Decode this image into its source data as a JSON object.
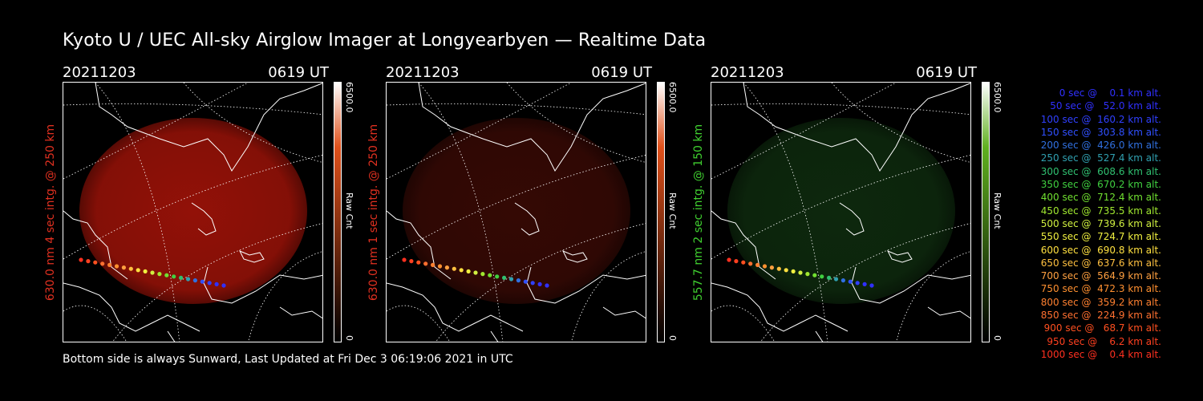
{
  "title": "Kyoto U / UEC All-sky Airglow Imager at Longyearbyen — Realtime Data",
  "panels": [
    {
      "date": "20211203",
      "time": "0619 UT",
      "side_label": "630.0 nm 4 sec intg. @ 250 km",
      "side_color": "#e03020",
      "cbar_max": "6500.0",
      "cbar_min": "0",
      "cbar_unit": "Raw Cnt",
      "glow_color": "#9a1208",
      "glow_opacity": 0.95,
      "cbar_top": "#ffffff",
      "cbar_mid": "#e0501a",
      "cbar_bottom": "#000000"
    },
    {
      "date": "20211203",
      "time": "0619 UT",
      "side_label": "630.0 nm 1 sec intg. @ 250 km",
      "side_color": "#e03020",
      "cbar_max": "6500.0",
      "cbar_min": "0",
      "cbar_unit": "Raw Cnt",
      "glow_color": "#3a0a05",
      "glow_opacity": 0.9,
      "cbar_top": "#ffffff",
      "cbar_mid": "#e0501a",
      "cbar_bottom": "#000000"
    },
    {
      "date": "20211203",
      "time": "0619 UT",
      "side_label": "557.7 nm 2 sec intg. @ 150 km",
      "side_color": "#40d030",
      "cbar_max": "6500.0",
      "cbar_min": "0",
      "cbar_unit": "Raw Cnt",
      "glow_color": "#0e2a0e",
      "glow_opacity": 0.95,
      "cbar_top": "#ffffff",
      "cbar_mid": "#60b020",
      "cbar_bottom": "#000000"
    }
  ],
  "footer": "Bottom side is always Sunward, Last Updated at Fri Dec  3 06:19:06 2021 in UTC",
  "legend": [
    {
      "text": "0 sec @    0.1 km alt.",
      "color": "#3030ff"
    },
    {
      "text": "50 sec @   52.0 km alt.",
      "color": "#3030ff"
    },
    {
      "text": "100 sec @  160.2 km alt.",
      "color": "#3040ff"
    },
    {
      "text": "150 sec @  303.8 km alt.",
      "color": "#3050ff"
    },
    {
      "text": "200 sec @  426.0 km alt.",
      "color": "#3070e0"
    },
    {
      "text": "250 sec @  527.4 km alt.",
      "color": "#30a0b0"
    },
    {
      "text": "300 sec @  608.6 km alt.",
      "color": "#30c070"
    },
    {
      "text": "350 sec @  670.2 km alt.",
      "color": "#40d040"
    },
    {
      "text": "400 sec @  712.4 km alt.",
      "color": "#70e030"
    },
    {
      "text": "450 sec @  735.5 km alt.",
      "color": "#a0e830"
    },
    {
      "text": "500 sec @  739.6 km alt.",
      "color": "#d0f040"
    },
    {
      "text": "550 sec @  724.7 km alt.",
      "color": "#f0f040"
    },
    {
      "text": "600 sec @  690.8 km alt.",
      "color": "#ffe040"
    },
    {
      "text": "650 sec @  637.6 km alt.",
      "color": "#ffc040"
    },
    {
      "text": "700 sec @  564.9 km alt.",
      "color": "#ffa040"
    },
    {
      "text": "750 sec @  472.3 km alt.",
      "color": "#ff9030"
    },
    {
      "text": "800 sec @  359.2 km alt.",
      "color": "#ff8030"
    },
    {
      "text": "850 sec @  224.9 km alt.",
      "color": "#ff7030"
    },
    {
      "text": "900 sec @   68.7 km alt.",
      "color": "#ff5020"
    },
    {
      "text": "950 sec @    6.2 km alt.",
      "color": "#ff4020"
    },
    {
      "text": "1000 sec @    0.4 km alt.",
      "color": "#ff3020"
    }
  ]
}
